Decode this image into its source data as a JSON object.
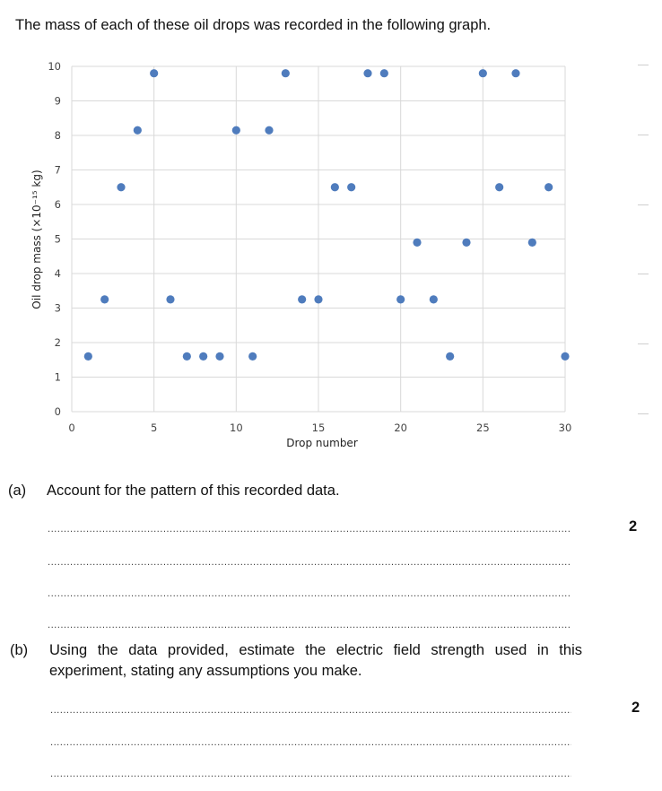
{
  "intro": "The mass of each of these oil drops was recorded in the following graph.",
  "chart_data": {
    "type": "scatter",
    "xlabel": "Drop number",
    "ylabel": "Oil drop mass (×10⁻¹⁵ kg)",
    "xlim": [
      0,
      30
    ],
    "ylim": [
      0,
      10
    ],
    "xticks": [
      0,
      5,
      10,
      15,
      20,
      25,
      30
    ],
    "yticks": [
      0,
      1,
      2,
      3,
      4,
      5,
      6,
      7,
      8,
      9,
      10
    ],
    "grid": true,
    "color": "#4f7cbd",
    "x": [
      1,
      2,
      3,
      4,
      5,
      6,
      7,
      8,
      9,
      10,
      11,
      12,
      13,
      14,
      15,
      16,
      17,
      18,
      19,
      20,
      21,
      22,
      23,
      24,
      25,
      26,
      27,
      28,
      29,
      30
    ],
    "y": [
      1.6,
      3.25,
      6.5,
      8.15,
      9.8,
      3.25,
      1.6,
      1.6,
      1.6,
      8.15,
      1.6,
      8.15,
      9.8,
      3.25,
      3.25,
      6.5,
      6.5,
      9.8,
      9.8,
      3.25,
      4.9,
      3.25,
      1.6,
      4.9,
      9.8,
      6.5,
      9.8,
      4.9,
      6.5,
      1.6
    ]
  },
  "question_a": {
    "label": "(a)",
    "text": "Account for the pattern of this recorded data.",
    "marks": "2"
  },
  "question_b": {
    "label": "(b)",
    "text": "Using the data provided, estimate the electric field strength used in this experiment, stating any assumptions you make.",
    "marks": "2"
  }
}
